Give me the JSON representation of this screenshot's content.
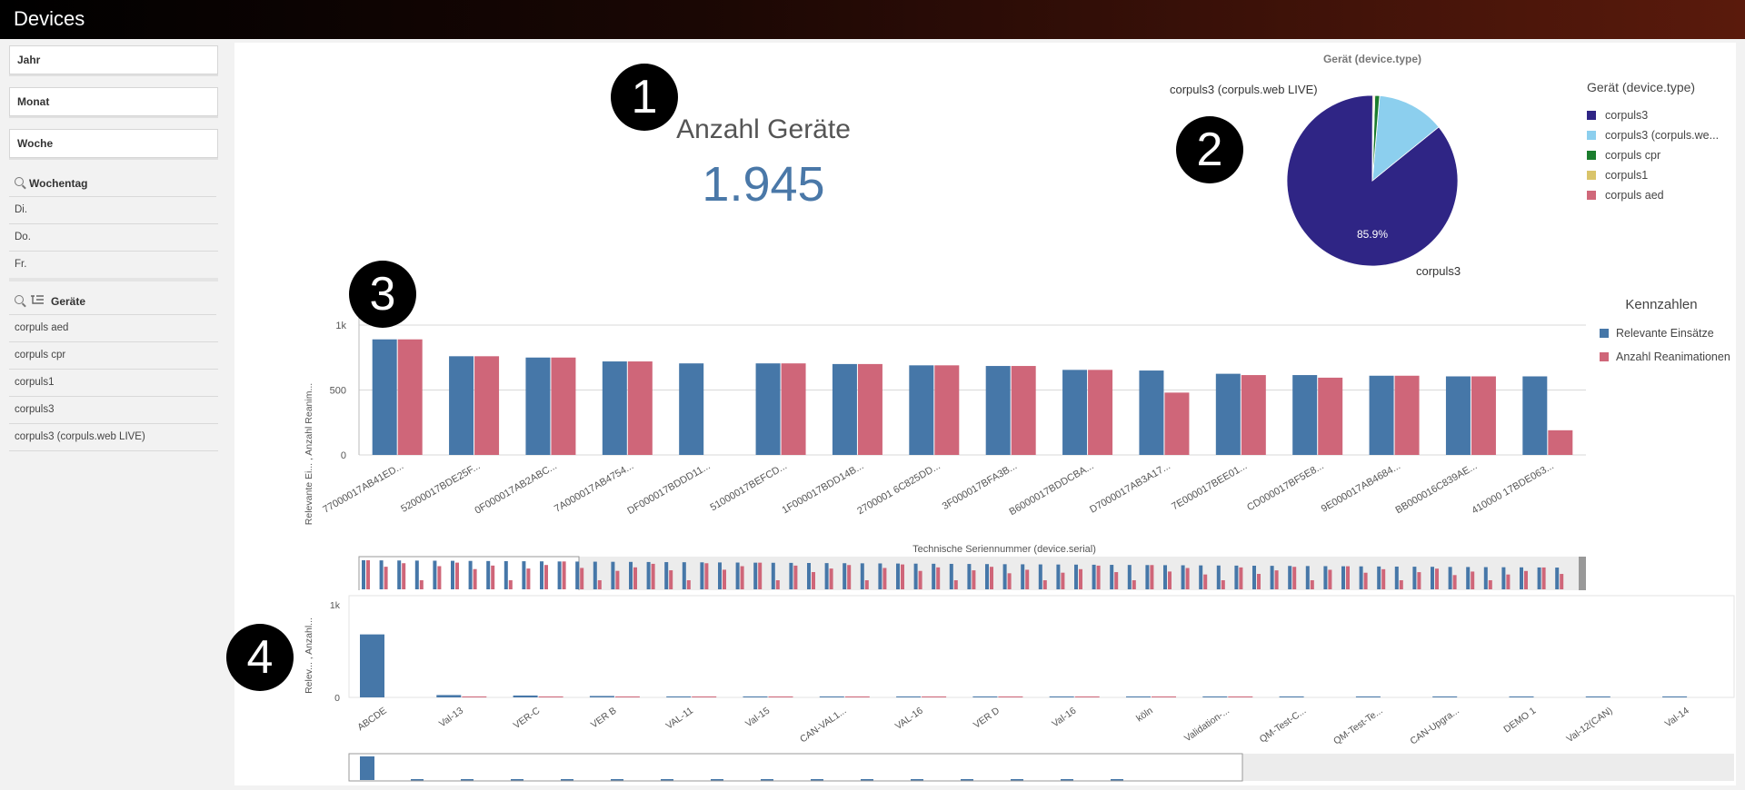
{
  "app": {
    "title": "Devices"
  },
  "filters": {
    "boxes": [
      "Jahr",
      "Monat",
      "Woche"
    ],
    "weekday": {
      "title": "Wochentag",
      "items": [
        "Di.",
        "Do.",
        "Fr."
      ]
    },
    "devices": {
      "title": "Geräte",
      "items": [
        "corpuls aed",
        "corpuls cpr",
        "corpuls1",
        "corpuls3",
        "corpuls3 (corpuls.web LIVE)"
      ]
    }
  },
  "badges": [
    "1",
    "2",
    "3",
    "4"
  ],
  "kpi": {
    "title": "Anzahl Geräte",
    "value": "1.945"
  },
  "pie": {
    "title": "Gerät (device.type)",
    "legend_title": "Gerät (device.type)",
    "legend_items": [
      "corpuls3",
      "corpuls3 (corpuls.we...",
      "corpuls cpr",
      "corpuls1",
      "corpuls aed"
    ],
    "colors": [
      "#2f2585",
      "#8ccfee",
      "#1b7d2e",
      "#d9c46a",
      "#d0687a"
    ],
    "percent_label": "85.9%",
    "outer_label_top": "corpuls3 (corpuls.web LIVE)",
    "outer_label_bottom": "corpuls3"
  },
  "chart_data": [
    {
      "type": "bar",
      "xlabel": "Technische Seriennummer (device.serial)",
      "ylabel": "Relevante Ei... , Anzahl Reanim...",
      "yticks": [
        "0",
        "500",
        "1k"
      ],
      "ylim": [
        0,
        1000
      ],
      "legend": {
        "title": "Kennzahlen",
        "placement": "right"
      },
      "categories": [
        "77000017AB41ED...",
        "52000017BDE25F...",
        "0F000017AB2ABC...",
        "7A000017AB4754...",
        "DF000017BDDD11...",
        "51000017BEFCD...",
        "1F000017BDD14B...",
        "2700001 6C825DD...",
        "3F000017BFA3B...",
        "B6000017BDDCBA...",
        "D7000017AB3A17...",
        "7E000017BEE01...",
        "CD000017BF5E8...",
        "9E000017AB4684...",
        "BB000016C839AE...",
        "410000 17BDE063..."
      ],
      "series": [
        {
          "name": "Relevante Einsätze",
          "color": "#4677a8",
          "values": [
            890,
            760,
            750,
            720,
            705,
            705,
            700,
            690,
            685,
            655,
            650,
            625,
            615,
            610,
            605,
            605
          ]
        },
        {
          "name": "Anzahl Reanimationen",
          "color": "#cf6679",
          "values": [
            890,
            760,
            750,
            720,
            0,
            705,
            700,
            690,
            685,
            655,
            480,
            615,
            595,
            610,
            605,
            190
          ]
        }
      ]
    },
    {
      "type": "bar",
      "ylabel": "Relev... , Anzahl...",
      "yticks": [
        "0",
        "1k"
      ],
      "ylim": [
        0,
        1000
      ],
      "categories": [
        "ABCDE",
        "Val-13",
        "VER-C",
        "VER B",
        "VAL-11",
        "Val-15",
        "CAN-VAL1...",
        "VAL-16",
        "VER D",
        "Val-16",
        "köln",
        "Validation-...",
        "QM-Test-C...",
        "QM-Test-Te...",
        "CAN-Upgra...",
        "DEMO 1",
        "Val-12(CAN)",
        "Val-14"
      ],
      "series": [
        {
          "name": "Relevante Einsätze",
          "color": "#4677a8",
          "values": [
            680,
            25,
            20,
            15,
            10,
            8,
            7,
            6,
            5,
            5,
            4,
            4,
            3,
            3,
            3,
            2,
            2,
            2
          ]
        },
        {
          "name": "Anzahl Reanimationen",
          "color": "#cf6679",
          "values": [
            0,
            5,
            4,
            3,
            2,
            2,
            1,
            1,
            1,
            1,
            1,
            1,
            0,
            0,
            0,
            0,
            0,
            0
          ]
        }
      ]
    }
  ]
}
